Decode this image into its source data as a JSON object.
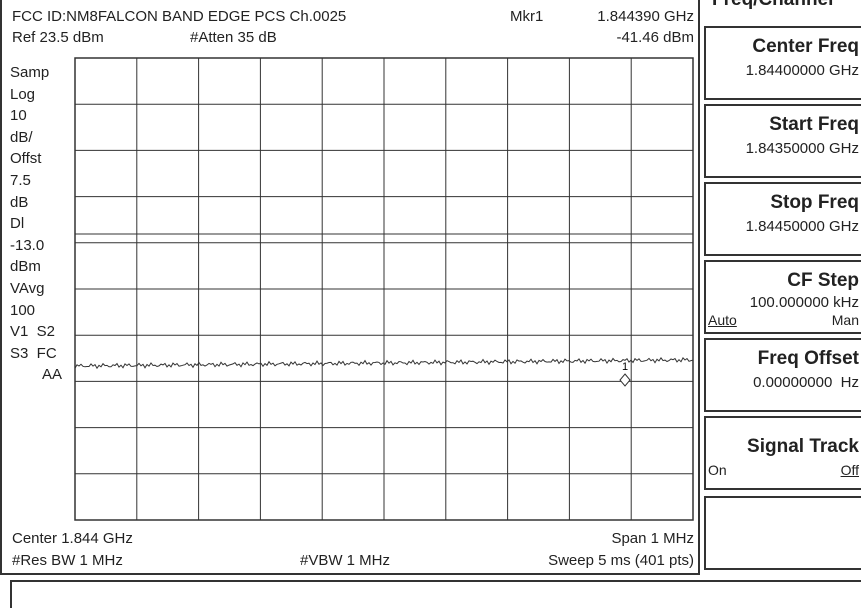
{
  "header": {
    "title": "FCC ID:NM8FALCON BAND EDGE PCS Ch.0025",
    "marker_label": "Mkr1",
    "marker_freq": "1.844390 GHz",
    "ref": "Ref 23.5 dBm",
    "atten": "#Atten 35 dB",
    "marker_level": "-41.46 dBm"
  },
  "side_labels": [
    "Samp",
    "Log",
    "10",
    "dB/",
    "Offst",
    "7.5",
    "dB",
    "Dl",
    "-13.0",
    "dBm",
    "VAvg",
    "100",
    "V1  S2",
    "S3  FC",
    "AA"
  ],
  "marker": {
    "number": "1"
  },
  "footer": {
    "center": "Center 1.844 GHz",
    "span": "Span 1 MHz",
    "rbw": "#Res BW 1 MHz",
    "vbw": "#VBW 1 MHz",
    "sweep": "Sweep 5 ms (401 pts)"
  },
  "menu": {
    "title": "Freq/Channel",
    "buttons": [
      {
        "label": "Center Freq",
        "value": "1.84400000 GHz"
      },
      {
        "label": "Start Freq",
        "value": "1.84350000 GHz"
      },
      {
        "label": "Stop Freq",
        "value": "1.84450000 GHz"
      },
      {
        "label": "CF Step",
        "value": "100.000000 kHz",
        "options": [
          "Auto",
          "Man"
        ]
      },
      {
        "label": "Freq Offset",
        "value": "0.00000000  Hz"
      },
      {
        "label": "Signal Track",
        "options": [
          "On",
          "Off"
        ]
      }
    ]
  }
}
